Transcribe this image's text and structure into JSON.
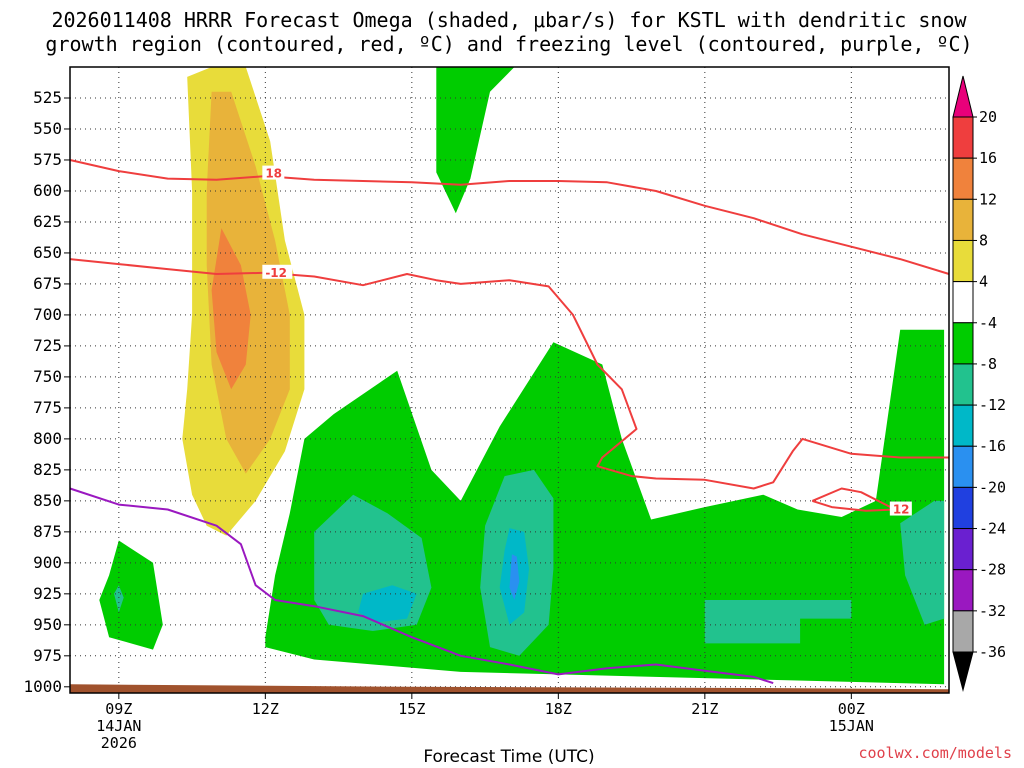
{
  "chart_data": {
    "type": "heatmap",
    "title_lines": [
      "2026011408 HRRR Forecast Omega (shaded, μbar/s) for KSTL with dendritic snow",
      "growth region (contoured, red, ºC) and freezing level (contoured, purple, ºC)"
    ],
    "xlabel": "Forecast Time (UTC)",
    "credit": "coolwx.com/models",
    "x_range_hours": [
      8,
      26
    ],
    "x_ticks": [
      {
        "h": 9,
        "lines": [
          "09Z",
          "14JAN",
          "2026"
        ]
      },
      {
        "h": 12,
        "lines": [
          "12Z"
        ]
      },
      {
        "h": 15,
        "lines": [
          "15Z"
        ]
      },
      {
        "h": 18,
        "lines": [
          "18Z"
        ]
      },
      {
        "h": 21,
        "lines": [
          "21Z"
        ]
      },
      {
        "h": 24,
        "lines": [
          "00Z",
          "15JAN"
        ]
      }
    ],
    "y_range_hpa": [
      500,
      1005
    ],
    "y_ticks": [
      525,
      550,
      575,
      600,
      625,
      650,
      675,
      700,
      725,
      750,
      775,
      800,
      825,
      850,
      875,
      900,
      925,
      950,
      975,
      1000
    ],
    "grid": true,
    "colorbar": {
      "labels": [
        20,
        16,
        12,
        8,
        4,
        -4,
        -8,
        -12,
        -16,
        -20,
        -24,
        -28,
        -32,
        -36
      ],
      "colors": [
        "#e8007a",
        "#ef3e3e",
        "#f0823c",
        "#e8b33a",
        "#e8dc3a",
        "#ffffff",
        "#00cc00",
        "#22c28e",
        "#00b8c8",
        "#2a90f0",
        "#2040e0",
        "#6a20d0",
        "#9a18c0",
        "#a8a8a8",
        "#000000"
      ]
    },
    "shaded_regions": [
      {
        "name": "yellow_4_8",
        "color": "#e8dc3a",
        "points": [
          [
            10.4,
            508
          ],
          [
            10.9,
            500
          ],
          [
            11.6,
            500
          ],
          [
            12.1,
            560
          ],
          [
            12.4,
            640
          ],
          [
            12.8,
            700
          ],
          [
            12.8,
            760
          ],
          [
            12.4,
            810
          ],
          [
            11.8,
            850
          ],
          [
            11.2,
            878
          ],
          [
            10.8,
            870
          ],
          [
            10.5,
            845
          ],
          [
            10.3,
            800
          ],
          [
            10.4,
            760
          ],
          [
            10.5,
            700
          ],
          [
            10.5,
            600
          ]
        ]
      },
      {
        "name": "gold_8_12",
        "color": "#e8b33a",
        "points": [
          [
            10.9,
            520
          ],
          [
            11.3,
            520
          ],
          [
            11.8,
            580
          ],
          [
            12.2,
            640
          ],
          [
            12.5,
            700
          ],
          [
            12.5,
            760
          ],
          [
            12.1,
            800
          ],
          [
            11.6,
            828
          ],
          [
            11.2,
            800
          ],
          [
            10.9,
            740
          ],
          [
            10.8,
            660
          ],
          [
            10.8,
            600
          ]
        ]
      },
      {
        "name": "orange_12_16",
        "color": "#f0823c",
        "points": [
          [
            11.1,
            630
          ],
          [
            11.5,
            660
          ],
          [
            11.7,
            700
          ],
          [
            11.6,
            740
          ],
          [
            11.3,
            760
          ],
          [
            11.0,
            730
          ],
          [
            10.9,
            680
          ]
        ]
      },
      {
        "name": "green_top",
        "color": "#00cc00",
        "points": [
          [
            15.5,
            500
          ],
          [
            17.1,
            500
          ],
          [
            16.6,
            520
          ],
          [
            16.2,
            590
          ],
          [
            15.9,
            618
          ],
          [
            15.5,
            585
          ],
          [
            15.5,
            550
          ]
        ]
      },
      {
        "name": "green_main",
        "color": "#00cc00",
        "points": [
          [
            12.0,
            960
          ],
          [
            12.2,
            910
          ],
          [
            12.5,
            860
          ],
          [
            12.8,
            800
          ],
          [
            13.4,
            780
          ],
          [
            14.7,
            745
          ],
          [
            15.4,
            825
          ],
          [
            16.0,
            850
          ],
          [
            16.8,
            790
          ],
          [
            17.9,
            722
          ],
          [
            18.9,
            740
          ],
          [
            19.3,
            800
          ],
          [
            19.9,
            865
          ],
          [
            21.0,
            855
          ],
          [
            22.2,
            845
          ],
          [
            22.9,
            857
          ],
          [
            23.8,
            863
          ],
          [
            24.5,
            850
          ],
          [
            25.0,
            712
          ],
          [
            25.9,
            712
          ],
          [
            25.9,
            998
          ],
          [
            23.0,
            995
          ],
          [
            18.0,
            990
          ],
          [
            16.0,
            988
          ],
          [
            13.0,
            978
          ],
          [
            12.0,
            968
          ]
        ]
      },
      {
        "name": "teal_left",
        "color": "#22c28e",
        "points": [
          [
            13.0,
            875
          ],
          [
            13.8,
            845
          ],
          [
            14.5,
            860
          ],
          [
            15.2,
            880
          ],
          [
            15.4,
            920
          ],
          [
            15.1,
            950
          ],
          [
            14.2,
            955
          ],
          [
            13.3,
            950
          ],
          [
            13.0,
            930
          ]
        ]
      },
      {
        "name": "cyan_left",
        "color": "#00b8c8",
        "points": [
          [
            14.0,
            925
          ],
          [
            14.6,
            918
          ],
          [
            15.1,
            925
          ],
          [
            14.9,
            945
          ],
          [
            14.3,
            948
          ],
          [
            13.9,
            940
          ]
        ]
      },
      {
        "name": "teal_mid",
        "color": "#22c28e",
        "points": [
          [
            16.9,
            830
          ],
          [
            17.5,
            825
          ],
          [
            17.9,
            848
          ],
          [
            17.9,
            905
          ],
          [
            17.8,
            950
          ],
          [
            17.2,
            975
          ],
          [
            16.6,
            968
          ],
          [
            16.4,
            920
          ],
          [
            16.5,
            870
          ]
        ]
      },
      {
        "name": "cyan_mid",
        "color": "#00b8c8",
        "points": [
          [
            17.0,
            872
          ],
          [
            17.3,
            875
          ],
          [
            17.4,
            905
          ],
          [
            17.3,
            940
          ],
          [
            17.0,
            950
          ],
          [
            16.8,
            920
          ],
          [
            16.9,
            890
          ]
        ]
      },
      {
        "name": "blue_mid",
        "color": "#2a90f0",
        "points": [
          [
            17.05,
            893
          ],
          [
            17.15,
            895
          ],
          [
            17.2,
            915
          ],
          [
            17.1,
            930
          ],
          [
            17.0,
            920
          ]
        ]
      },
      {
        "name": "teal_right_low",
        "color": "#22c28e",
        "points": [
          [
            21.0,
            930
          ],
          [
            24.0,
            930
          ],
          [
            24.0,
            945
          ],
          [
            22.95,
            945
          ],
          [
            22.95,
            965
          ],
          [
            21.0,
            965
          ]
        ]
      },
      {
        "name": "teal_right",
        "color": "#22c28e",
        "points": [
          [
            25.0,
            868
          ],
          [
            25.7,
            850
          ],
          [
            25.9,
            850
          ],
          [
            25.9,
            945
          ],
          [
            25.5,
            950
          ],
          [
            25.1,
            910
          ]
        ]
      },
      {
        "name": "green_small",
        "color": "#00cc00",
        "points": [
          [
            8.8,
            910
          ],
          [
            9.0,
            882
          ],
          [
            9.7,
            900
          ],
          [
            9.9,
            950
          ],
          [
            9.7,
            970
          ],
          [
            8.8,
            960
          ],
          [
            8.6,
            930
          ]
        ]
      },
      {
        "name": "teal_small",
        "color": "#22c28e",
        "points": [
          [
            8.9,
            925
          ],
          [
            9.0,
            918
          ],
          [
            9.1,
            928
          ],
          [
            9.0,
            940
          ]
        ]
      }
    ],
    "contours": [
      {
        "name": "dgz_-18",
        "color": "#ef3e3e",
        "label": "18",
        "label_at": [
          12.0,
          586
        ],
        "points": [
          [
            8,
            575
          ],
          [
            9,
            584
          ],
          [
            10,
            590
          ],
          [
            11,
            591
          ],
          [
            12,
            588
          ],
          [
            13,
            591
          ],
          [
            14,
            592
          ],
          [
            15,
            593
          ],
          [
            16,
            595
          ],
          [
            17,
            592
          ],
          [
            18,
            592
          ],
          [
            19,
            593
          ],
          [
            20,
            600
          ],
          [
            21,
            612
          ],
          [
            22,
            622
          ],
          [
            23,
            635
          ],
          [
            24,
            645
          ],
          [
            25,
            655
          ],
          [
            26,
            667
          ]
        ]
      },
      {
        "name": "dgz_-12",
        "color": "#ef3e3e",
        "label": "-12",
        "label_at": [
          12.0,
          666
        ],
        "points": [
          [
            8,
            655
          ],
          [
            9,
            659
          ],
          [
            10,
            663
          ],
          [
            11,
            667
          ],
          [
            12,
            666
          ],
          [
            13,
            669
          ],
          [
            14,
            676
          ],
          [
            14.9,
            667
          ],
          [
            15.5,
            672
          ],
          [
            16,
            675
          ],
          [
            17,
            672
          ],
          [
            17.8,
            677
          ],
          [
            18.3,
            700
          ],
          [
            18.8,
            740
          ],
          [
            19.3,
            760
          ],
          [
            19.6,
            792
          ],
          [
            18.9,
            815
          ],
          [
            18.8,
            822
          ],
          [
            19.5,
            830
          ],
          [
            20,
            832
          ],
          [
            21,
            833
          ],
          [
            22,
            840
          ],
          [
            22.4,
            835
          ],
          [
            22.8,
            810
          ],
          [
            23.0,
            800
          ],
          [
            24,
            812
          ],
          [
            25,
            815
          ],
          [
            26,
            815
          ]
        ]
      },
      {
        "name": "dgz_-12_loop",
        "color": "#ef3e3e",
        "label": "12",
        "label_at": [
          24.85,
          857
        ],
        "points": [
          [
            23.2,
            850
          ],
          [
            23.8,
            840
          ],
          [
            24.2,
            843
          ],
          [
            24.9,
            857
          ],
          [
            24.3,
            858
          ],
          [
            23.6,
            855
          ],
          [
            23.2,
            850
          ]
        ]
      },
      {
        "name": "freezing_level",
        "color": "#9a18c0",
        "label": "",
        "label_at": null,
        "points": [
          [
            8,
            840
          ],
          [
            9,
            853
          ],
          [
            10,
            857
          ],
          [
            11,
            870
          ],
          [
            11.5,
            885
          ],
          [
            11.8,
            918
          ],
          [
            12.2,
            930
          ],
          [
            13,
            935
          ],
          [
            14,
            943
          ],
          [
            15,
            960
          ],
          [
            16,
            975
          ],
          [
            17,
            982
          ],
          [
            18,
            990
          ],
          [
            19,
            985
          ],
          [
            20,
            982
          ],
          [
            21,
            987
          ],
          [
            22,
            992
          ],
          [
            22.4,
            997
          ]
        ]
      }
    ],
    "terrain": {
      "color": "#a0522d"
    }
  }
}
